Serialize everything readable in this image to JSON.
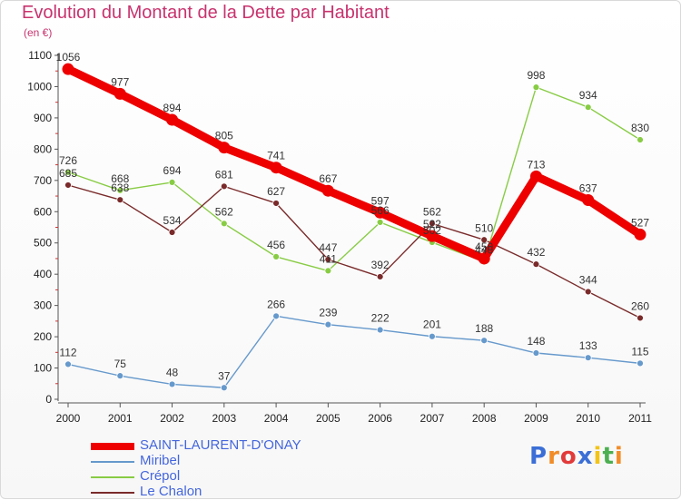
{
  "chart_data": {
    "type": "line",
    "title": "Evolution du Montant de la Dette par Habitant",
    "subtitle": "(en €)",
    "x": [
      "2000",
      "2001",
      "2002",
      "2003",
      "2004",
      "2005",
      "2006",
      "2007",
      "2008",
      "2009",
      "2010",
      "2011"
    ],
    "yticks": [
      "0",
      "100",
      "200",
      "300",
      "400",
      "500",
      "600",
      "700",
      "800",
      "900",
      "1000",
      "1100"
    ],
    "ylim": [
      0,
      1100
    ],
    "grid": false,
    "legend_position": "bottom-left",
    "series": [
      {
        "name": "SAINT-LAURENT-D'ONAY",
        "color": "#ee0000",
        "values": [
          1056,
          977,
          894,
          805,
          741,
          667,
          597,
          522,
          450,
          713,
          637,
          527
        ]
      },
      {
        "name": "Miribel",
        "color": "#6699cc",
        "values": [
          112,
          75,
          48,
          37,
          266,
          239,
          222,
          201,
          188,
          148,
          133,
          115
        ]
      },
      {
        "name": "Crépol",
        "color": "#88cc44",
        "values": [
          726,
          668,
          694,
          562,
          456,
          411,
          566,
          502,
          440,
          998,
          934,
          830
        ]
      },
      {
        "name": "Le Chalon",
        "color": "#7a2a2a",
        "values": [
          685,
          638,
          534,
          681,
          627,
          447,
          392,
          562,
          510,
          432,
          344,
          260
        ]
      }
    ]
  },
  "logo": {
    "text": "Proxiti"
  }
}
